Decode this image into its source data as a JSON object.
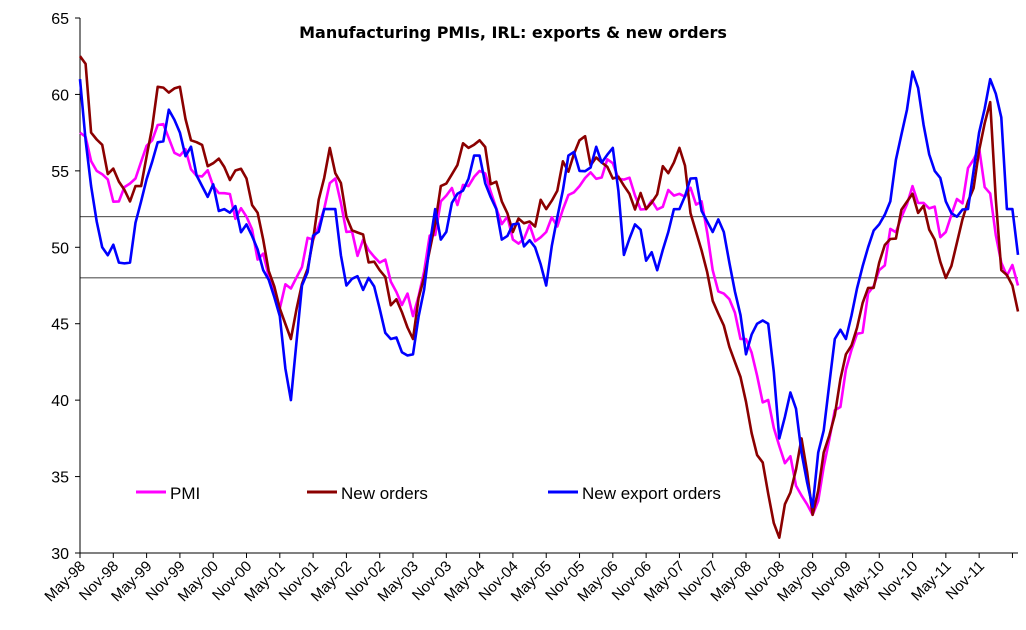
{
  "chart_data": {
    "type": "line",
    "title": "Manufacturing PMIs, IRL: exports & new orders",
    "xlabel": "",
    "ylabel": "",
    "ylim": [
      30,
      65
    ],
    "yticks": [
      30,
      35,
      40,
      45,
      50,
      55,
      60,
      65
    ],
    "x_tick_labels": [
      "May-98",
      "Nov-98",
      "May-99",
      "Nov-99",
      "May-00",
      "Nov-00",
      "May-01",
      "Nov-01",
      "May-02",
      "Nov-02",
      "May-03",
      "Nov-03",
      "May-04",
      "Nov-04",
      "May-05",
      "Nov-05",
      "May-06",
      "Nov-06",
      "May-07",
      "Nov-07",
      "May-08",
      "Nov-08",
      "May-09",
      "Nov-09",
      "May-10",
      "Nov-10",
      "May-11",
      "Nov-11"
    ],
    "reference_lines": [
      52,
      48
    ],
    "legend_position": "bottom-left",
    "series": [
      {
        "name": "PMI",
        "color": "#ff00ff",
        "anchors": [
          [
            0,
            57.5
          ],
          [
            3,
            55
          ],
          [
            7,
            53
          ],
          [
            10,
            54.5
          ],
          [
            14,
            58
          ],
          [
            18,
            56
          ],
          [
            24,
            54
          ],
          [
            30,
            52
          ],
          [
            36,
            46
          ],
          [
            42,
            50.5
          ],
          [
            46,
            54.5
          ],
          [
            48,
            51
          ],
          [
            54,
            49
          ],
          [
            60,
            45.5
          ],
          [
            65,
            53
          ],
          [
            70,
            54
          ],
          [
            72,
            55
          ],
          [
            78,
            50.5
          ],
          [
            84,
            51
          ],
          [
            90,
            54
          ],
          [
            96,
            55.5
          ],
          [
            102,
            52.5
          ],
          [
            108,
            53.5
          ],
          [
            112,
            53
          ],
          [
            114,
            48.5
          ],
          [
            120,
            44
          ],
          [
            126,
            37
          ],
          [
            132,
            32.5
          ],
          [
            138,
            42
          ],
          [
            144,
            48.5
          ],
          [
            150,
            54
          ],
          [
            156,
            51
          ],
          [
            162,
            56.5
          ],
          [
            166,
            49
          ],
          [
            169,
            47.5
          ]
        ]
      },
      {
        "name": "New orders",
        "color": "#8b0000",
        "anchors": [
          [
            0,
            62.5
          ],
          [
            1,
            62
          ],
          [
            2,
            57.5
          ],
          [
            7,
            54.3
          ],
          [
            9,
            53
          ],
          [
            11,
            54
          ],
          [
            14,
            60.5
          ],
          [
            18,
            60.5
          ],
          [
            20,
            57
          ],
          [
            24,
            55.5
          ],
          [
            30,
            54.5
          ],
          [
            33,
            50.5
          ],
          [
            36,
            46
          ],
          [
            38,
            44
          ],
          [
            42,
            50.5
          ],
          [
            45,
            56.5
          ],
          [
            48,
            52
          ],
          [
            54,
            48.5
          ],
          [
            60,
            44
          ],
          [
            65,
            54
          ],
          [
            70,
            56.5
          ],
          [
            72,
            57
          ],
          [
            76,
            53
          ],
          [
            78,
            51
          ],
          [
            84,
            52.5
          ],
          [
            90,
            57
          ],
          [
            96,
            54.5
          ],
          [
            102,
            52.5
          ],
          [
            108,
            56.5
          ],
          [
            111,
            51
          ],
          [
            114,
            46.5
          ],
          [
            118,
            42.5
          ],
          [
            126,
            31
          ],
          [
            130,
            37.5
          ],
          [
            132,
            32.5
          ],
          [
            138,
            43
          ],
          [
            144,
            49
          ],
          [
            150,
            53.5
          ],
          [
            154,
            50.5
          ],
          [
            156,
            48
          ],
          [
            160,
            53
          ],
          [
            164,
            59.5
          ],
          [
            166,
            48.5
          ],
          [
            168,
            47.5
          ],
          [
            169,
            45.8
          ]
        ]
      },
      {
        "name": "New export orders",
        "color": "#0000ff",
        "anchors": [
          [
            0,
            61
          ],
          [
            1,
            57
          ],
          [
            2,
            54
          ],
          [
            4,
            50
          ],
          [
            7,
            49
          ],
          [
            9,
            49
          ],
          [
            11,
            53
          ],
          [
            16,
            59
          ],
          [
            18,
            57.5
          ],
          [
            22,
            54
          ],
          [
            26,
            52.5
          ],
          [
            30,
            51.5
          ],
          [
            33,
            48.5
          ],
          [
            36,
            45.5
          ],
          [
            38,
            40
          ],
          [
            40,
            47.5
          ],
          [
            44,
            52.5
          ],
          [
            46,
            52.5
          ],
          [
            48,
            47.5
          ],
          [
            52,
            48
          ],
          [
            56,
            44
          ],
          [
            60,
            43
          ],
          [
            64,
            52.5
          ],
          [
            65,
            50.5
          ],
          [
            68,
            53.5
          ],
          [
            72,
            56
          ],
          [
            76,
            50.5
          ],
          [
            78,
            51.5
          ],
          [
            82,
            50
          ],
          [
            84,
            47.5
          ],
          [
            88,
            56
          ],
          [
            90,
            55
          ],
          [
            96,
            56.5
          ],
          [
            98,
            49.5
          ],
          [
            100,
            51.5
          ],
          [
            104,
            48.5
          ],
          [
            106,
            51
          ],
          [
            108,
            52.5
          ],
          [
            110,
            54.5
          ],
          [
            114,
            51
          ],
          [
            116,
            51
          ],
          [
            120,
            43
          ],
          [
            122,
            45
          ],
          [
            124,
            45
          ],
          [
            126,
            37.5
          ],
          [
            128,
            40.5
          ],
          [
            132,
            33
          ],
          [
            136,
            44
          ],
          [
            138,
            44
          ],
          [
            142,
            50
          ],
          [
            144,
            51.5
          ],
          [
            146,
            53
          ],
          [
            150,
            61.5
          ],
          [
            152,
            58
          ],
          [
            154,
            55
          ],
          [
            156,
            53
          ],
          [
            158,
            52
          ],
          [
            160,
            52.5
          ],
          [
            162,
            57.5
          ],
          [
            164,
            61
          ],
          [
            166,
            58.5
          ],
          [
            167,
            52.5
          ],
          [
            168,
            52.5
          ],
          [
            169,
            49.5
          ]
        ]
      }
    ]
  }
}
